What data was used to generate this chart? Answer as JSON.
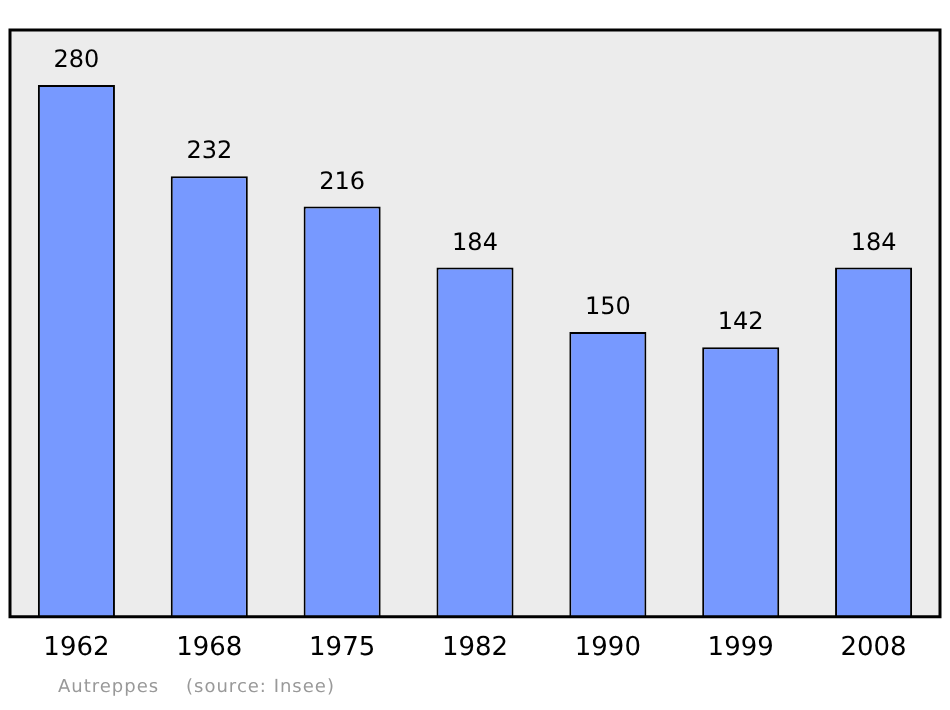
{
  "chart_data": {
    "type": "bar",
    "categories": [
      "1962",
      "1968",
      "1975",
      "1982",
      "1990",
      "1999",
      "2008"
    ],
    "values": [
      280,
      232,
      216,
      184,
      150,
      142,
      184
    ],
    "color": "#7799ff",
    "ylim": [
      0,
      309
    ],
    "data_labels": true,
    "grid": false,
    "legend": false,
    "tick_labels": "x",
    "annotations": [
      "Autreppes    (source: Insee)"
    ]
  }
}
